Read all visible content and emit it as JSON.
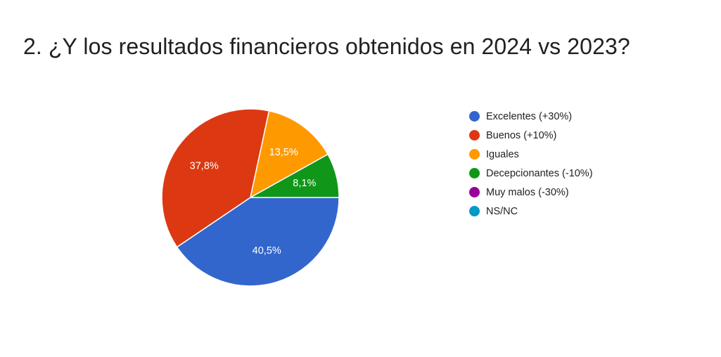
{
  "title": "2. ¿Y los resultados financieros obtenidos en 2024 vs 2023?",
  "chart_data": {
    "type": "pie",
    "title": "2. ¿Y los resultados financieros obtenidos en 2024 vs 2023?",
    "legend_position": "right",
    "start": "3 o'clock, clockwise",
    "series": [
      {
        "name": "Excelentes (+30%)",
        "value": 40.5,
        "label": "40,5%",
        "color": "#3366cc"
      },
      {
        "name": "Buenos (+10%)",
        "value": 37.8,
        "label": "37,8%",
        "color": "#dc3912"
      },
      {
        "name": "Iguales",
        "value": 13.5,
        "label": "13,5%",
        "color": "#ff9900"
      },
      {
        "name": "Decepcionantes (-10%)",
        "value": 8.1,
        "label": "8,1%",
        "color": "#109618"
      },
      {
        "name": "Muy malos (-30%)",
        "value": 0,
        "label": "",
        "color": "#990099"
      },
      {
        "name": "NS/NC",
        "value": 0,
        "label": "",
        "color": "#0099c6"
      }
    ]
  }
}
